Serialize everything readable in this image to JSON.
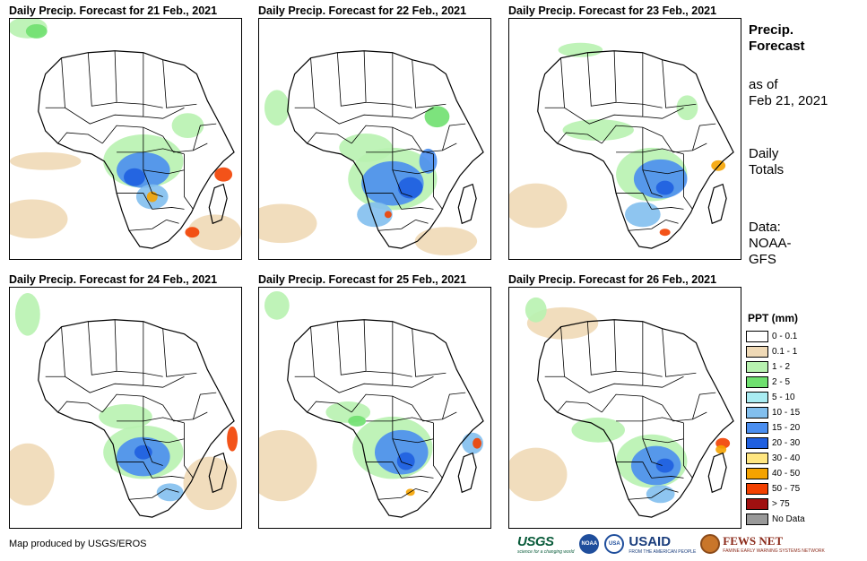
{
  "panels": [
    {
      "title": "Daily Precip. Forecast for 21 Feb., 2021"
    },
    {
      "title": "Daily Precip. Forecast for 22 Feb., 2021"
    },
    {
      "title": "Daily Precip. Forecast for 23 Feb., 2021"
    },
    {
      "title": "Daily Precip. Forecast for 24 Feb., 2021"
    },
    {
      "title": "Daily Precip. Forecast for 25 Feb., 2021"
    },
    {
      "title": "Daily Precip. Forecast for 26 Feb., 2021"
    }
  ],
  "side": {
    "title_line1": "Precip.",
    "title_line2": "Forecast",
    "asof_line1": "as of",
    "asof_line2": "Feb 21, 2021",
    "totals_line1": "Daily",
    "totals_line2": "Totals",
    "data_line1": "Data:",
    "data_line2": "NOAA-",
    "data_line3": "GFS"
  },
  "legend": {
    "title": "PPT (mm)",
    "items": [
      {
        "label": "0 - 0.1",
        "color": "#ffffff"
      },
      {
        "label": "0.1 - 1",
        "color": "#efd9b6"
      },
      {
        "label": "1 - 2",
        "color": "#b8f2b0"
      },
      {
        "label": "2 - 5",
        "color": "#6fe06f"
      },
      {
        "label": "5 - 10",
        "color": "#a9ecf2"
      },
      {
        "label": "10 - 15",
        "color": "#82bfee"
      },
      {
        "label": "15 - 20",
        "color": "#4a8ef0"
      },
      {
        "label": "20 - 30",
        "color": "#1f5fe0"
      },
      {
        "label": "30 - 40",
        "color": "#ffe680"
      },
      {
        "label": "40 - 50",
        "color": "#f5a300"
      },
      {
        "label": "50 - 75",
        "color": "#f24000"
      },
      {
        "label": "> 75",
        "color": "#a01010"
      },
      {
        "label": "No Data",
        "color": "#999999"
      }
    ]
  },
  "footer": {
    "credit": "Map produced by USGS/EROS"
  },
  "logos": {
    "usgs": "USGS",
    "usgs_tag": "science for a changing world",
    "noaa": "NOAA",
    "gov": "USA",
    "usaid": "USAID",
    "usaid_tag": "FROM THE AMERICAN PEOPLE",
    "fews": "FEWS NET",
    "fews_tag": "FAMINE EARLY WARNING SYSTEMS NETWORK"
  }
}
